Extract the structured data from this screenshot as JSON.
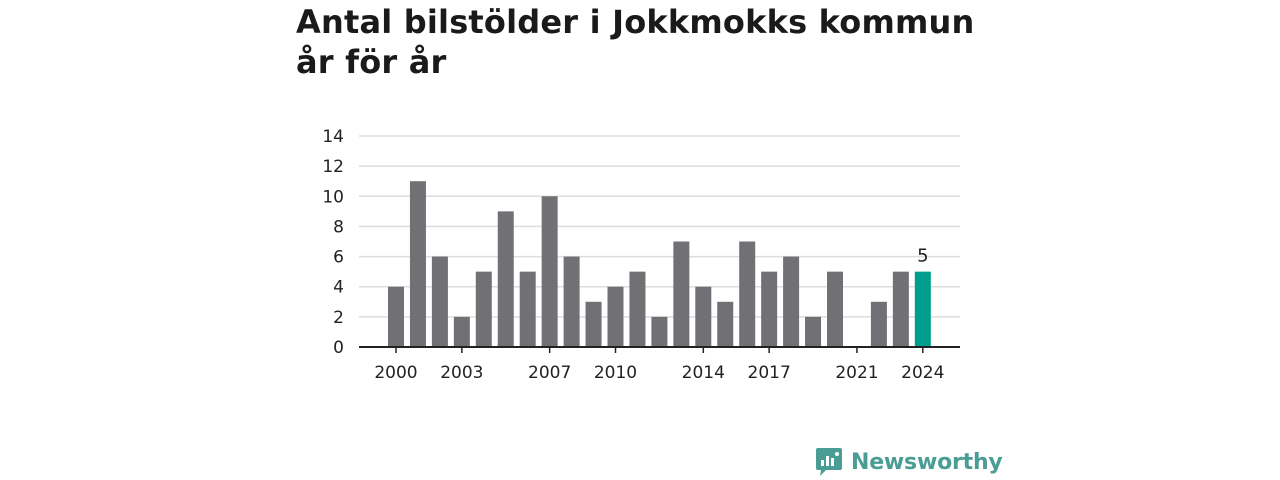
{
  "title": "Antal bilstölder i Jokkmokks kommun år för år",
  "brand": {
    "name": "Newsworthy",
    "color": "#4a9d95"
  },
  "colors": {
    "bar": "#717075",
    "highlight": "#009e8c",
    "grid": "#dddddd",
    "axis": "#222222"
  },
  "chart_data": {
    "type": "bar",
    "x": [
      2000,
      2001,
      2002,
      2003,
      2004,
      2005,
      2006,
      2007,
      2008,
      2009,
      2010,
      2011,
      2012,
      2013,
      2014,
      2015,
      2016,
      2017,
      2018,
      2019,
      2020,
      2021,
      2022,
      2023,
      2024
    ],
    "values": [
      4,
      11,
      6,
      2,
      5,
      9,
      5,
      10,
      6,
      3,
      4,
      5,
      2,
      7,
      4,
      3,
      7,
      5,
      6,
      2,
      5,
      0,
      3,
      5,
      5
    ],
    "x_tick_labels": [
      "2000",
      "2003",
      "2007",
      "2010",
      "2014",
      "2017",
      "2021",
      "2024"
    ],
    "y_ticks": [
      0,
      2,
      4,
      6,
      8,
      10,
      12,
      14
    ],
    "ylim": [
      0,
      14
    ],
    "grid": true,
    "highlight_index": 24,
    "data_labels": [
      {
        "x": 2024,
        "text": "5"
      }
    ]
  }
}
